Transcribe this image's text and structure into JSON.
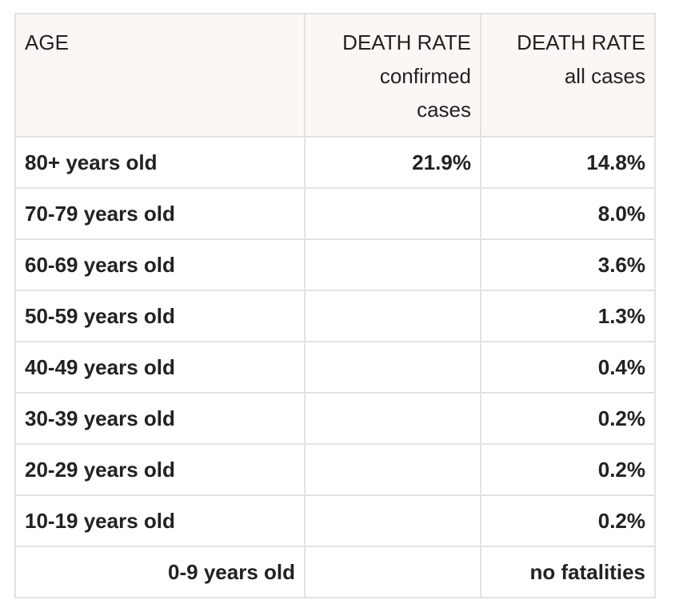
{
  "table": {
    "headers": [
      [
        "AGE"
      ],
      [
        "DEATH RATE",
        "confirmed",
        "cases"
      ],
      [
        "DEATH RATE",
        "all cases"
      ]
    ],
    "rows": [
      {
        "age": "80+ years old",
        "confirmed": "21.9%",
        "all": "14.8%"
      },
      {
        "age": "70-79 years old",
        "all": "8.0%"
      },
      {
        "age": "60-69 years old",
        "all": "3.6%"
      },
      {
        "age": "50-59 years old",
        "all": "1.3%"
      },
      {
        "age": "40-49 years old",
        "all": "0.4%"
      },
      {
        "age": "30-39 years old",
        "all": "0.2%"
      },
      {
        "age": "20-29 years old",
        "all": "0.2%"
      },
      {
        "age": "10-19 years old",
        "all": "0.2%"
      },
      {
        "age": "0-9 years old",
        "all": "no fatalities",
        "age_align": "right"
      }
    ]
  }
}
